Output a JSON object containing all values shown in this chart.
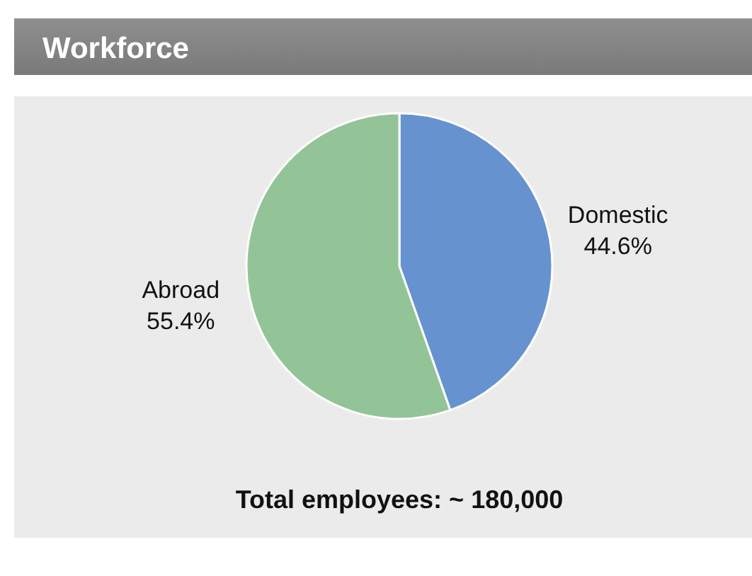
{
  "chart_data": {
    "type": "pie",
    "title": "Workforce",
    "categories": [
      "Domestic",
      "Abroad"
    ],
    "values": [
      44.6,
      55.4
    ],
    "colors": [
      "#6693cf",
      "#93c497"
    ],
    "value_labels": [
      "44.6%",
      "55.4%"
    ],
    "annotations": [
      "Total employees: ~ 180,000"
    ]
  }
}
